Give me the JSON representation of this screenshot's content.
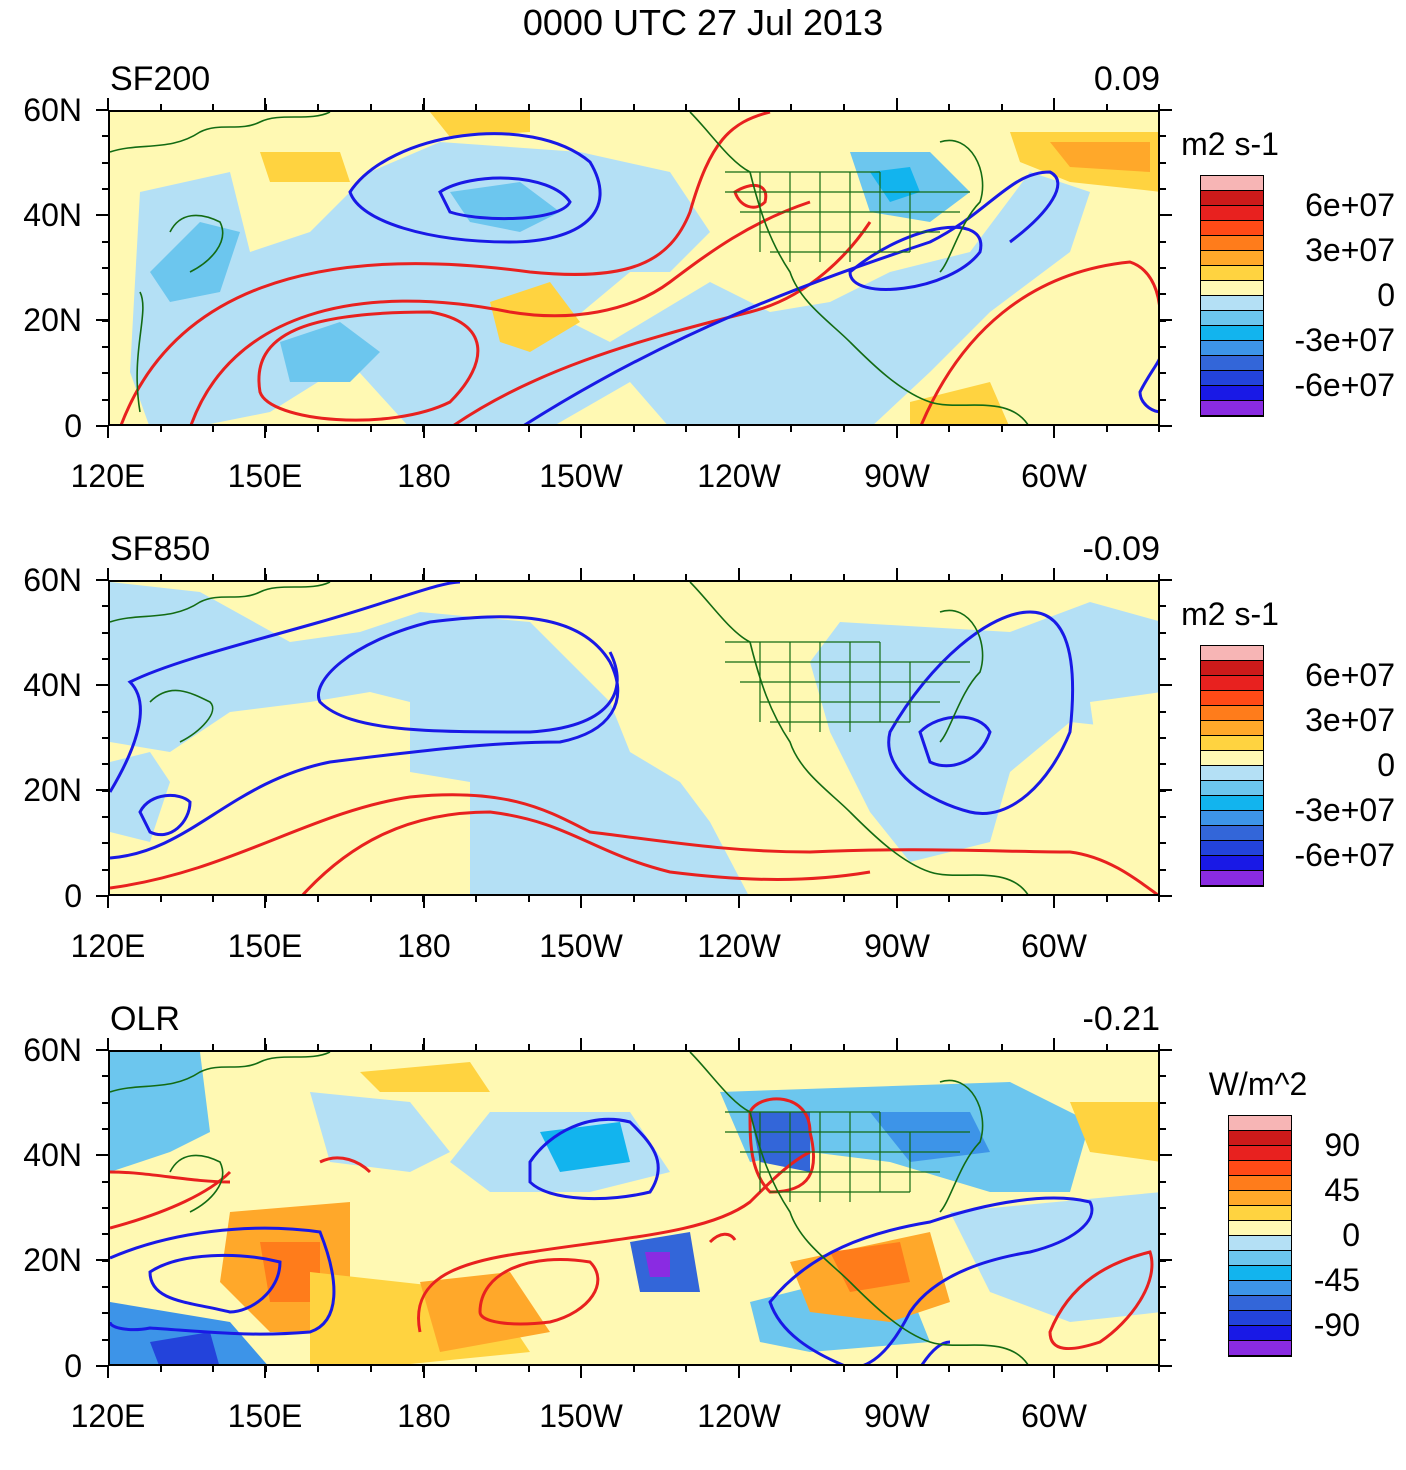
{
  "title": "0000 UTC 27 Jul 2013",
  "x_ticks": [
    "120E",
    "150E",
    "180",
    "150W",
    "120W",
    "90W",
    "60W"
  ],
  "y_ticks": [
    "60N",
    "40N",
    "20N",
    "0"
  ],
  "panels": [
    {
      "label": "SF200",
      "value": "0.09",
      "units": "m2 s-1",
      "colorbar_labels": [
        "6e+07",
        "3e+07",
        "0",
        "-3e+07",
        "-6e+07"
      ],
      "colors": [
        "#f7b5b5",
        "#cc1a1a",
        "#e8211f",
        "#ff4a16",
        "#ff7c1b",
        "#ffa82a",
        "#ffd340",
        "#fff9b3",
        "#b4e0f5",
        "#6cc6ee",
        "#12b4ee",
        "#3d94e8",
        "#3366d9",
        "#2343db",
        "#1919e6",
        "#8a2be2"
      ]
    },
    {
      "label": "SF850",
      "value": "-0.09",
      "units": "m2 s-1",
      "colorbar_labels": [
        "6e+07",
        "3e+07",
        "0",
        "-3e+07",
        "-6e+07"
      ],
      "colors": [
        "#f7b5b5",
        "#cc1a1a",
        "#e8211f",
        "#ff4a16",
        "#ff7c1b",
        "#ffa82a",
        "#ffd340",
        "#fff9b3",
        "#b4e0f5",
        "#6cc6ee",
        "#12b4ee",
        "#3d94e8",
        "#3366d9",
        "#2343db",
        "#1919e6",
        "#8a2be2"
      ]
    },
    {
      "label": "OLR",
      "value": "-0.21",
      "units": "W/m^2",
      "colorbar_labels": [
        "90",
        "45",
        "0",
        "-45",
        "-90"
      ],
      "colors": [
        "#f7b5b5",
        "#cc1a1a",
        "#e8211f",
        "#ff4a16",
        "#ff7c1b",
        "#ffa82a",
        "#ffd340",
        "#fff9b3",
        "#b4e0f5",
        "#6cc6ee",
        "#12b4ee",
        "#3d94e8",
        "#3366d9",
        "#2343db",
        "#1919e6",
        "#8a2be2"
      ]
    }
  ]
}
